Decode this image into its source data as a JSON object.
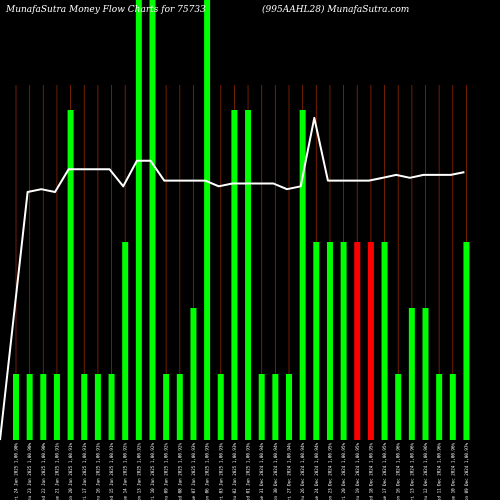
{
  "chart_data": {
    "type": "bar",
    "title_left": "MunafaSutra  Money Flow  Charts for 75733",
    "title_right": "(995AAHL28) MunafaSutra.com",
    "ylim": [
      0,
      100
    ],
    "categories": [
      "Fri 24 Jan 2025 1,00.90%",
      "Thu 23 Jan 2025 1,00.90%",
      "Wed 22 Jan 2025 1,00.90%",
      "Tue 21 Jan 2025 1,00.91%",
      "Mon 20 Jan 2025 1,00.91%",
      "Fri 17 Jan 2025 1,00.91%",
      "Thu 16 Jan 2025 1,00.91%",
      "Wed 15 Jan 2025 1,00.91%",
      "Tue 14 Jan 2025 1,00.92%",
      "Mon 13 Jan 2025 1,00.92%",
      "Fri 10 Jan 2025 1,00.92%",
      "Thu 09 Jan 2025 1,00.92%",
      "Wed 08 Jan 2025 1,00.92%",
      "Tue 07 Jan 2025 1,00.93%",
      "Mon 06 Jan 2025 1,00.93%",
      "Fri 03 Jan 2025 1,00.93%",
      "Thu 02 Jan 2025 1,00.93%",
      "Wed 01 Jan 2025 1,00.93%",
      "Tue 31 Dec 2024 1,00.94%",
      "Mon 30 Dec 2024 1,00.94%",
      "Fri 27 Dec 2024 1,00.94%",
      "Thu 26 Dec 2024 1,00.94%",
      "Tue 24 Dec 2024 1,00.94%",
      "Mon 23 Dec 2024 1,00.95%",
      "Fri 20 Dec 2024 1,00.95%",
      "Thu 19 Dec 2024 1,00.95%",
      "Wed 18 Dec 2024 1,00.95%",
      "Tue 17 Dec 2024 1,00.95%",
      "Mon 16 Dec 2024 1,00.96%",
      "Fri 13 Dec 2024 1,00.96%",
      "Thu 12 Dec 2024 1,00.96%",
      "Wed 11 Dec 2024 1,00.96%",
      "Tue 10 Dec 2024 1,00.96%",
      "Mon 09 Dec 2024 1,00.97%"
    ],
    "series": [
      {
        "values": [
          15,
          15,
          15,
          15,
          75,
          15,
          15,
          15,
          45,
          100,
          100,
          15,
          15,
          30,
          100,
          15,
          75,
          75,
          15,
          15,
          15,
          75,
          45,
          45,
          45,
          45,
          45,
          45,
          15,
          30,
          30,
          15,
          15,
          45
        ],
        "bar_colors": [
          "#00ff00",
          "#00ff00",
          "#00ff00",
          "#00ff00",
          "#00ff00",
          "#00ff00",
          "#00ff00",
          "#00ff00",
          "#00ff00",
          "#00ff00",
          "#00ff00",
          "#00ff00",
          "#00ff00",
          "#00ff00",
          "#00ff00",
          "#00ff00",
          "#00ff00",
          "#00ff00",
          "#00ff00",
          "#00ff00",
          "#00ff00",
          "#00ff00",
          "#00ff00",
          "#00ff00",
          "#00ff00",
          "#ff0000",
          "#ff0000",
          "#00ff00",
          "#00ff00",
          "#00ff00",
          "#00ff00",
          "#00ff00",
          "#00ff00",
          "#00ff00"
        ]
      },
      {
        "type": "line",
        "color": "#ffffff",
        "values": [
          0,
          87,
          88,
          87,
          95,
          95,
          95,
          95,
          89,
          98,
          98,
          91,
          91,
          91,
          91,
          89,
          90,
          90,
          90,
          90,
          88,
          89,
          113,
          91,
          91,
          91,
          91,
          92,
          93,
          92,
          93,
          93,
          93,
          94
        ]
      }
    ],
    "colors": {
      "background": "#000000",
      "inflow": "#00ff00",
      "outflow": "#ff0000",
      "grid": "#8b2500",
      "line": "#ffffff"
    }
  }
}
